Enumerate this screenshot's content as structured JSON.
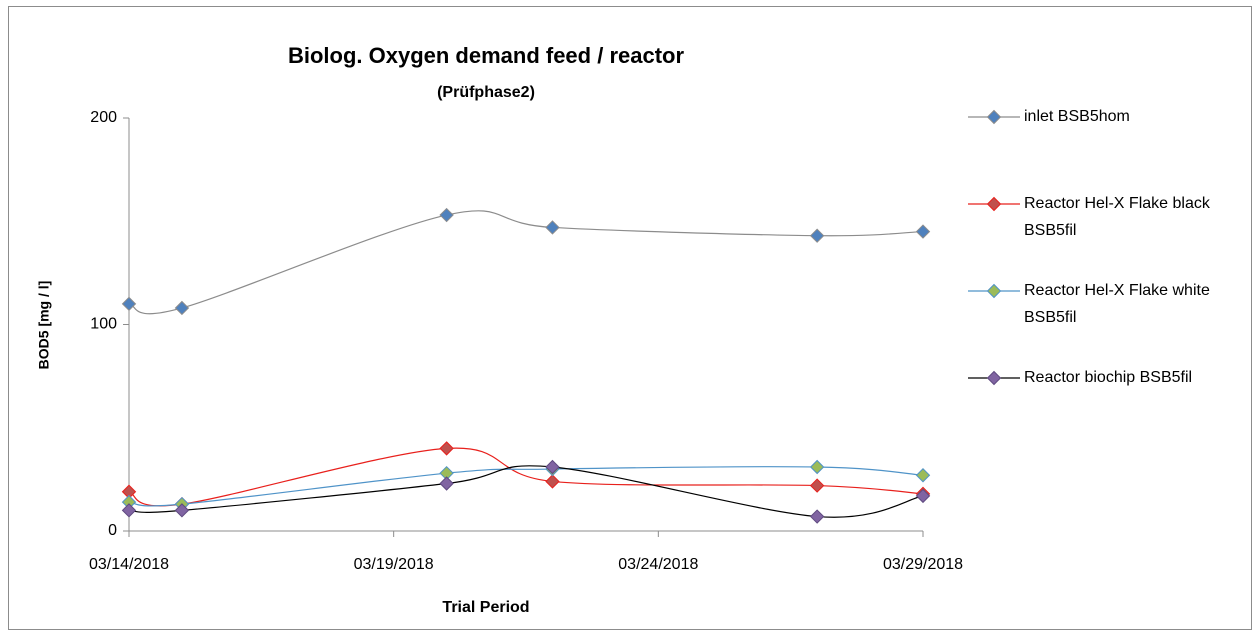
{
  "chart_data": {
    "type": "line",
    "title": "Biolog. Oxygen demand feed / reactor",
    "subtitle": "(Prüfphase2)",
    "x_label": "Trial Period",
    "y_label": "BOD5 [mg / l]",
    "x": [
      "03/14/2018",
      "03/15/2018",
      "03/20/2018",
      "03/22/2018",
      "03/27/2018",
      "03/29/2018"
    ],
    "xlim": [
      "03/14/2018",
      "03/29/2018"
    ],
    "xticks": [
      "03/14/2018",
      "03/19/2018",
      "03/24/2018",
      "03/29/2018"
    ],
    "ylim": [
      0,
      200
    ],
    "yticks": [
      0,
      100,
      200
    ],
    "smooth": true,
    "legend": "right",
    "series": [
      {
        "name": "inlet BSB5hom",
        "color": "#8c8c8c",
        "marker_color": "#4f81bd",
        "values": [
          110,
          108,
          153,
          147,
          143,
          145
        ]
      },
      {
        "name": "Reactor Hel-X Flake black BSB5fil",
        "color": "#e8201c",
        "marker_color": "#c0504d",
        "values": [
          19,
          13,
          40,
          24,
          22,
          18
        ]
      },
      {
        "name": "Reactor Hel-X Flake white BSB5fil",
        "color": "#4f93c8",
        "marker_color": "#9bbb59",
        "values": [
          14,
          13,
          28,
          30,
          31,
          27
        ]
      },
      {
        "name": "Reactor biochip BSB5fil",
        "color": "#000000",
        "marker_color": "#8064a2",
        "values": [
          10,
          10,
          23,
          31,
          7,
          17
        ]
      }
    ]
  }
}
